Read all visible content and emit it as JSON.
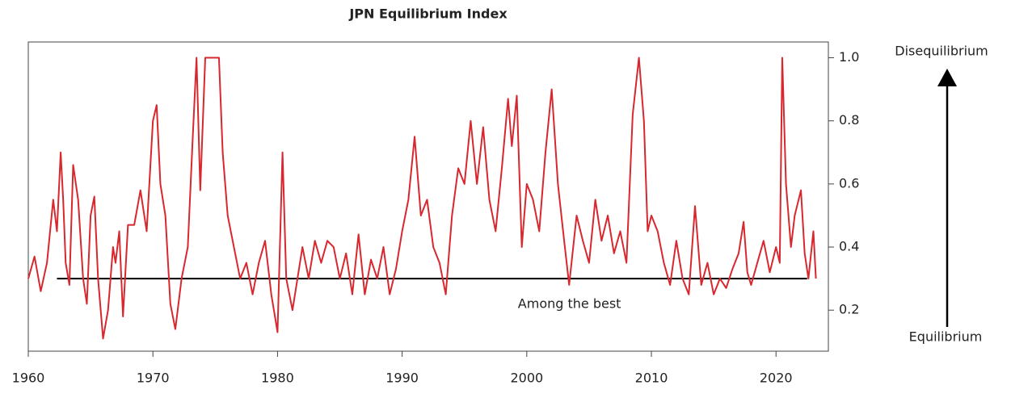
{
  "chart_data": {
    "type": "line",
    "title": "JPN Equilibrium Index",
    "x": [
      1960,
      1960.5,
      1961,
      1961.5,
      1962,
      1962.3,
      1962.6,
      1962.8,
      1963,
      1963.3,
      1963.6,
      1964,
      1964.4,
      1964.7,
      1965,
      1965.3,
      1965.6,
      1966,
      1966.4,
      1966.8,
      1967,
      1967.3,
      1967.6,
      1968,
      1968.5,
      1969,
      1969.5,
      1970,
      1970.3,
      1970.6,
      1971,
      1971.4,
      1971.8,
      1972.3,
      1972.8,
      1973.2,
      1973.5,
      1973.8,
      1974.2,
      1975.3,
      1975.6,
      1976,
      1976.5,
      1977,
      1977.5,
      1978,
      1978.5,
      1979,
      1979.5,
      1980,
      1980.4,
      1980.7,
      1981.2,
      1981.6,
      1982,
      1982.5,
      1983,
      1983.5,
      1984,
      1984.5,
      1985,
      1985.5,
      1986,
      1986.5,
      1987,
      1987.5,
      1988,
      1988.5,
      1989,
      1989.5,
      1990,
      1990.5,
      1991,
      1991.5,
      1992,
      1992.5,
      1993,
      1993.5,
      1994,
      1994.5,
      1995,
      1995.5,
      1996,
      1996.5,
      1997,
      1997.5,
      1998,
      1998.5,
      1998.8,
      1999.2,
      1999.6,
      2000,
      2000.5,
      2001,
      2001.5,
      2002,
      2002.5,
      2003,
      2003.4,
      2004,
      2004.5,
      2005,
      2005.5,
      2006,
      2006.5,
      2007,
      2007.5,
      2008,
      2008.5,
      2009,
      2009.4,
      2009.7,
      2010,
      2010.5,
      2011,
      2011.5,
      2012,
      2012.5,
      2013,
      2013.5,
      2014,
      2014.5,
      2015,
      2015.5,
      2016,
      2016.5,
      2017,
      2017.4,
      2017.7,
      2018,
      2018.5,
      2019,
      2019.5,
      2020,
      2020.3,
      2020.5,
      2020.8,
      2021.2,
      2021.5,
      2022,
      2022.3,
      2022.6,
      2023,
      2023.2
    ],
    "series": [
      {
        "name": "JPN Equilibrium Index",
        "color": "#d7282f",
        "values": [
          0.3,
          0.37,
          0.26,
          0.35,
          0.55,
          0.45,
          0.7,
          0.55,
          0.35,
          0.28,
          0.66,
          0.55,
          0.3,
          0.22,
          0.5,
          0.56,
          0.3,
          0.11,
          0.2,
          0.4,
          0.35,
          0.45,
          0.18,
          0.47,
          0.47,
          0.58,
          0.45,
          0.8,
          0.85,
          0.6,
          0.5,
          0.22,
          0.14,
          0.3,
          0.4,
          0.75,
          1.0,
          0.58,
          1.0,
          1.0,
          0.7,
          0.5,
          0.4,
          0.3,
          0.35,
          0.25,
          0.35,
          0.42,
          0.25,
          0.13,
          0.7,
          0.3,
          0.2,
          0.3,
          0.4,
          0.3,
          0.42,
          0.35,
          0.42,
          0.4,
          0.3,
          0.38,
          0.25,
          0.44,
          0.25,
          0.36,
          0.3,
          0.4,
          0.25,
          0.33,
          0.45,
          0.55,
          0.75,
          0.5,
          0.55,
          0.4,
          0.35,
          0.25,
          0.5,
          0.65,
          0.6,
          0.8,
          0.6,
          0.78,
          0.55,
          0.45,
          0.65,
          0.87,
          0.72,
          0.88,
          0.4,
          0.6,
          0.55,
          0.45,
          0.7,
          0.9,
          0.6,
          0.42,
          0.28,
          0.5,
          0.42,
          0.35,
          0.55,
          0.42,
          0.5,
          0.38,
          0.45,
          0.35,
          0.82,
          1.0,
          0.8,
          0.45,
          0.5,
          0.45,
          0.35,
          0.28,
          0.42,
          0.3,
          0.25,
          0.53,
          0.28,
          0.35,
          0.25,
          0.3,
          0.27,
          0.33,
          0.38,
          0.48,
          0.32,
          0.28,
          0.35,
          0.42,
          0.32,
          0.4,
          0.35,
          1.0,
          0.6,
          0.4,
          0.5,
          0.58,
          0.38,
          0.3,
          0.45,
          0.3
        ]
      }
    ],
    "xlim": [
      1960,
      2024.2
    ],
    "xticks": [
      1960,
      1970,
      1980,
      1990,
      2000,
      2010,
      2020
    ],
    "ylim": [
      0.07,
      1.05
    ],
    "yticks": [
      0.2,
      0.4,
      0.6,
      0.8,
      {
        "value": 1,
        "label": "1.0"
      }
    ],
    "reference_line": {
      "value": 0.3,
      "x": [
        1962.3,
        2022.5
      ],
      "label": "Among the best",
      "color": "#000000"
    },
    "annotations": {
      "top": "Disequilibrium",
      "bottom": "Equilibrium"
    }
  }
}
